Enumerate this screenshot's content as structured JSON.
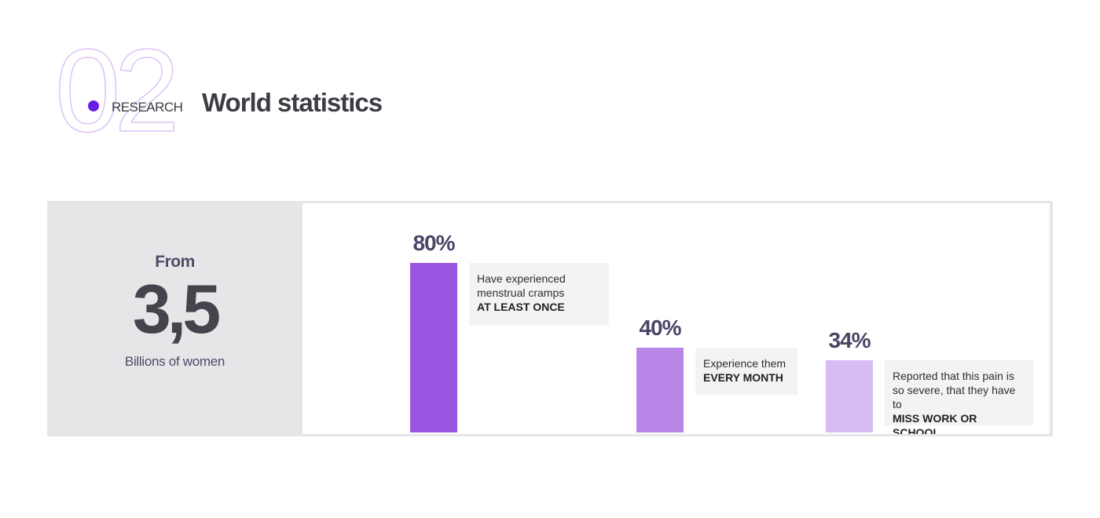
{
  "header": {
    "section_number": "02",
    "section_label": "RESEARCH",
    "title": "World statistics"
  },
  "summary": {
    "prefix": "From",
    "number": "3,5",
    "caption": "Billions of women"
  },
  "colors": {
    "accent": "#6a1fe6",
    "bar_1": "#9b55e3",
    "bar_2": "#b986e8",
    "bar_3": "#d7bcf3"
  },
  "chart_data": {
    "type": "bar",
    "ylim": [
      0,
      80
    ],
    "grid": false,
    "series": [
      {
        "values": [
          80,
          40,
          34
        ],
        "value_labels": [
          "80%",
          "40%",
          "34%"
        ]
      }
    ],
    "notes": [
      {
        "line1": "Have experienced",
        "line2": "menstrual cramps",
        "emphasis": "AT LEAST ONCE"
      },
      {
        "line1": "Experience them",
        "line2": "",
        "emphasis": "EVERY MONTH"
      },
      {
        "line1": "Reported that this pain is",
        "line2": "so severe, that they have to",
        "emphasis": "MISS WORK OR SCHOOL"
      }
    ]
  }
}
